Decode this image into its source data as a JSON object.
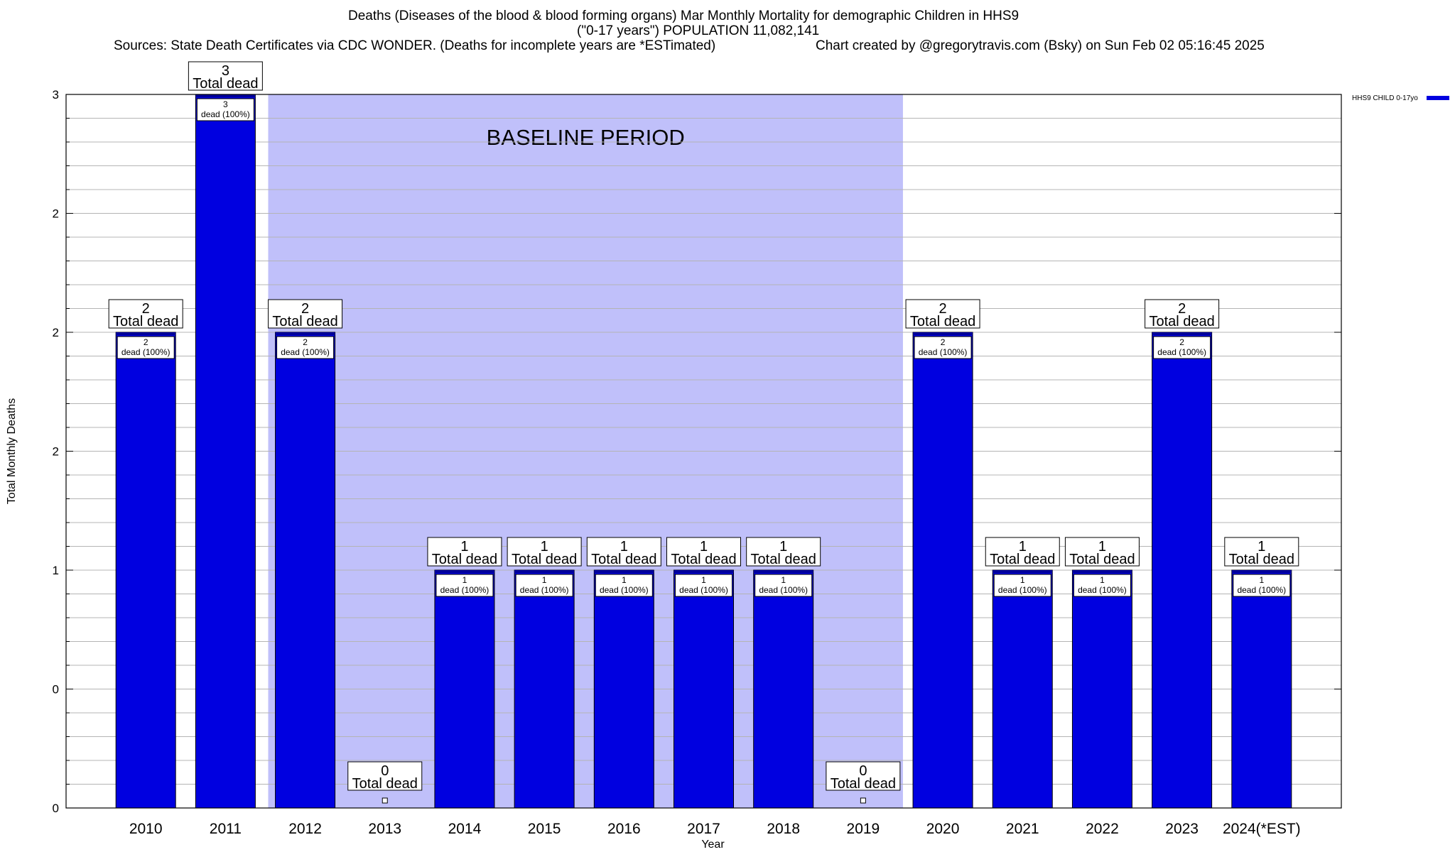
{
  "title": {
    "line1": "Deaths (Diseases of the blood & blood forming organs) Mar Monthly Mortality for demographic Children in HHS9",
    "line2": "(\"0-17 years\") POPULATION 11,082,141",
    "line3_left": "Sources: State Death Certificates via CDC WONDER. (Deaths for incomplete years are *ESTimated)",
    "line3_right": "Chart created by @gregorytravis.com (Bsky) on Sun Feb 02 05:16:45 2025"
  },
  "colors": {
    "bar": "#0000e0",
    "bar_top": "#00009a",
    "baseline_band": "#c0c0fa",
    "grid": "#b4b4b4"
  },
  "chart_data": {
    "type": "bar",
    "xlabel": "Year",
    "ylabel": "Total Monthly Deaths",
    "ylim": [
      0,
      3
    ],
    "y_tick_labels": [
      "0",
      "0",
      "1",
      "2",
      "2",
      "2",
      "3"
    ],
    "grid": true,
    "categories": [
      "2010",
      "2011",
      "2012",
      "2013",
      "2014",
      "2015",
      "2016",
      "2017",
      "2018",
      "2019",
      "2020",
      "2021",
      "2022",
      "2023",
      "2024(*EST)"
    ],
    "series": [
      {
        "name": "HHS9 CHILD 0-17yo",
        "values": [
          2,
          3,
          2,
          0,
          1,
          1,
          1,
          1,
          1,
          0,
          2,
          1,
          1,
          2,
          1
        ]
      }
    ],
    "total_labels": [
      "2\nTotal dead",
      "3\nTotal dead",
      "2\nTotal dead",
      "0\nTotal dead",
      "1\nTotal dead",
      "1\nTotal dead",
      "1\nTotal dead",
      "1\nTotal dead",
      "1\nTotal dead",
      "0\nTotal dead",
      "2\nTotal dead",
      "1\nTotal dead",
      "1\nTotal dead",
      "2\nTotal dead",
      "1\nTotal dead"
    ],
    "inner_labels": [
      "2\ndead (100%)",
      "3\ndead (100%)",
      "2\ndead (100%)",
      "",
      "1\ndead (100%)",
      "1\ndead (100%)",
      "1\ndead (100%)",
      "1\ndead (100%)",
      "1\ndead (100%)",
      "",
      "2\ndead (100%)",
      "1\ndead (100%)",
      "1\ndead (100%)",
      "2\ndead (100%)",
      "1\ndead (100%)"
    ],
    "baseline": {
      "label": "BASELINE PERIOD",
      "from": "2012",
      "to": "2019"
    },
    "legend_position": "top-right"
  }
}
